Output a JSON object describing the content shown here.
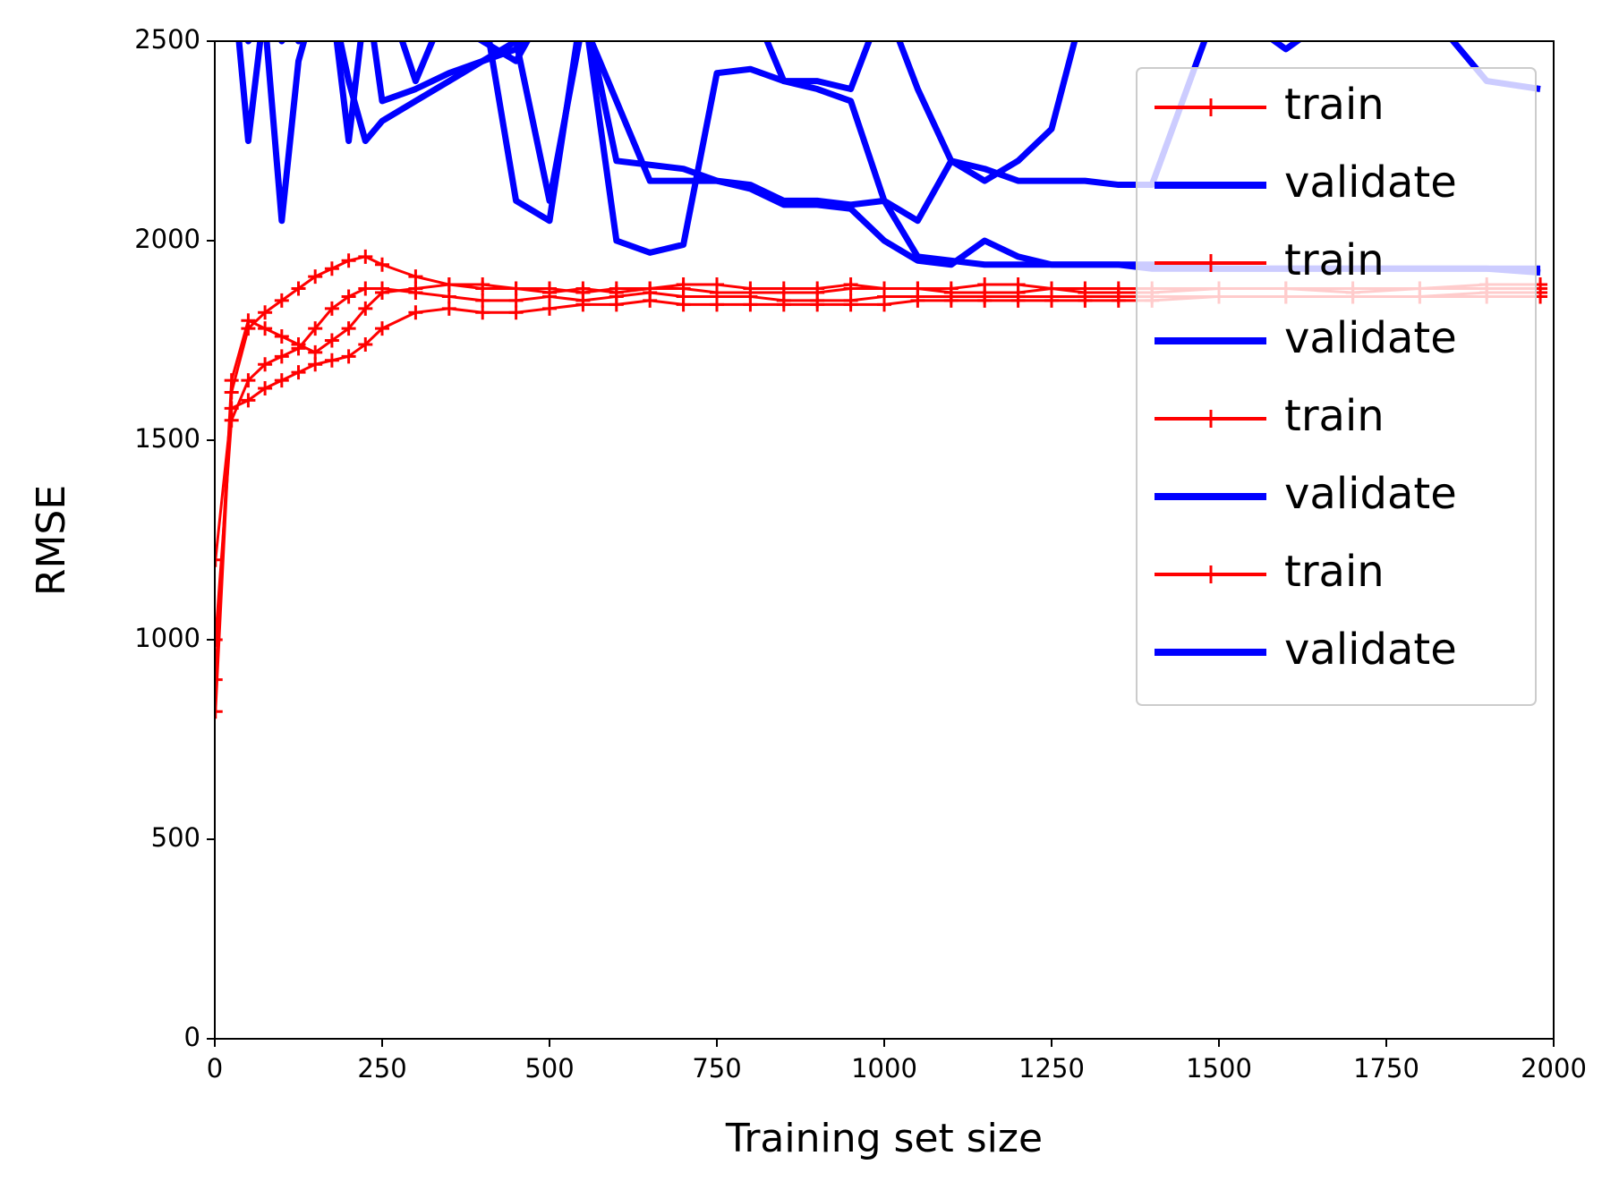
{
  "chart_data": {
    "type": "line",
    "xlabel": "Training set size",
    "ylabel": "RMSE",
    "xlim": [
      0,
      2000
    ],
    "ylim": [
      0,
      2500
    ],
    "xticks": [
      0,
      250,
      500,
      750,
      1000,
      1250,
      1500,
      1750,
      2000
    ],
    "yticks": [
      0,
      500,
      1000,
      1500,
      2000,
      2500
    ],
    "grid": false,
    "legend": "upper right",
    "x": [
      1,
      25,
      50,
      75,
      100,
      125,
      150,
      175,
      200,
      225,
      250,
      300,
      350,
      400,
      450,
      500,
      550,
      600,
      650,
      700,
      750,
      800,
      850,
      900,
      950,
      1000,
      1050,
      1100,
      1150,
      1200,
      1250,
      1300,
      1350,
      1400,
      1500,
      1600,
      1700,
      1800,
      1900,
      1980
    ],
    "series": [
      {
        "name": "train",
        "color": "#ff0000",
        "marker": "+",
        "values": [
          820,
          1620,
          1780,
          1820,
          1850,
          1880,
          1910,
          1930,
          1950,
          1960,
          1940,
          1910,
          1890,
          1880,
          1880,
          1870,
          1880,
          1870,
          1880,
          1890,
          1890,
          1880,
          1880,
          1880,
          1890,
          1880,
          1880,
          1870,
          1870,
          1870,
          1880,
          1870,
          1870,
          1870,
          1880,
          1880,
          1870,
          1880,
          1880,
          1880
        ]
      },
      {
        "name": "validate",
        "color": "#0000ff",
        "values": [
          null,
          2700,
          2250,
          2600,
          2500,
          2550,
          2650,
          2600,
          2400,
          2250,
          2300,
          2350,
          2400,
          2450,
          2500,
          2100,
          2550,
          2350,
          2150,
          2150,
          2150,
          2140,
          2100,
          2100,
          2090,
          2100,
          1960,
          1950,
          1940,
          1940,
          1940,
          1940,
          1940,
          1930,
          1930,
          1930,
          1930,
          1930,
          1930,
          1930
        ]
      },
      {
        "name": "train",
        "color": "#ff0000",
        "marker": "+",
        "values": [
          1000,
          1550,
          1650,
          1690,
          1710,
          1730,
          1780,
          1830,
          1860,
          1880,
          1880,
          1870,
          1860,
          1850,
          1850,
          1860,
          1850,
          1860,
          1870,
          1860,
          1860,
          1860,
          1850,
          1850,
          1850,
          1860,
          1860,
          1860,
          1860,
          1860,
          1860,
          1860,
          1860,
          1860,
          1860,
          1860,
          1860,
          1860,
          1870,
          1870
        ]
      },
      {
        "name": "validate",
        "color": "#0000ff",
        "values": [
          null,
          2600,
          2500,
          2550,
          2050,
          2450,
          2600,
          2550,
          2600,
          2650,
          2350,
          2380,
          2420,
          2450,
          2480,
          2600,
          2600,
          2200,
          2190,
          2180,
          2150,
          2130,
          2090,
          2090,
          2080,
          2000,
          1950,
          1940,
          2000,
          1960,
          1940,
          1940,
          1940,
          1940,
          1930,
          1930,
          1930,
          1930,
          1930,
          1920
        ]
      },
      {
        "name": "train",
        "color": "#ff0000",
        "marker": "+",
        "values": [
          1200,
          1580,
          1600,
          1630,
          1650,
          1670,
          1690,
          1700,
          1710,
          1740,
          1780,
          1820,
          1830,
          1820,
          1820,
          1830,
          1840,
          1840,
          1850,
          1840,
          1840,
          1840,
          1840,
          1840,
          1840,
          1840,
          1850,
          1850,
          1850,
          1850,
          1850,
          1850,
          1850,
          1850,
          1860,
          1860,
          1860,
          1860,
          1860,
          1860
        ]
      },
      {
        "name": "validate",
        "color": "#0000ff",
        "values": [
          null,
          2650,
          2600,
          2550,
          2600,
          2500,
          2620,
          2600,
          2250,
          2600,
          2650,
          2400,
          2600,
          2600,
          2100,
          2050,
          2600,
          2000,
          1970,
          1990,
          2420,
          2430,
          2400,
          2380,
          2350,
          2100,
          2050,
          2200,
          2150,
          2200,
          2280,
          2600,
          2600,
          2600,
          2600,
          2480,
          2600,
          2600,
          2550,
          2600
        ]
      },
      {
        "name": "train",
        "color": "#ff0000",
        "marker": "+",
        "values": [
          900,
          1650,
          1800,
          1780,
          1760,
          1740,
          1720,
          1750,
          1780,
          1830,
          1870,
          1880,
          1890,
          1890,
          1880,
          1880,
          1870,
          1880,
          1880,
          1880,
          1870,
          1870,
          1870,
          1870,
          1880,
          1880,
          1880,
          1880,
          1890,
          1890,
          1880,
          1880,
          1880,
          1880,
          1880,
          1880,
          1880,
          1880,
          1890,
          1890
        ]
      },
      {
        "name": "validate",
        "color": "#0000ff",
        "values": [
          null,
          2600,
          2580,
          2600,
          2550,
          2600,
          2600,
          2600,
          2600,
          2600,
          2600,
          2600,
          2550,
          2500,
          2450,
          2600,
          2600,
          2600,
          2600,
          2600,
          2600,
          2600,
          2400,
          2400,
          2380,
          2600,
          2380,
          2200,
          2180,
          2150,
          2150,
          2150,
          2140,
          2140,
          2600,
          2600,
          2600,
          2600,
          2400,
          2380
        ]
      }
    ]
  }
}
